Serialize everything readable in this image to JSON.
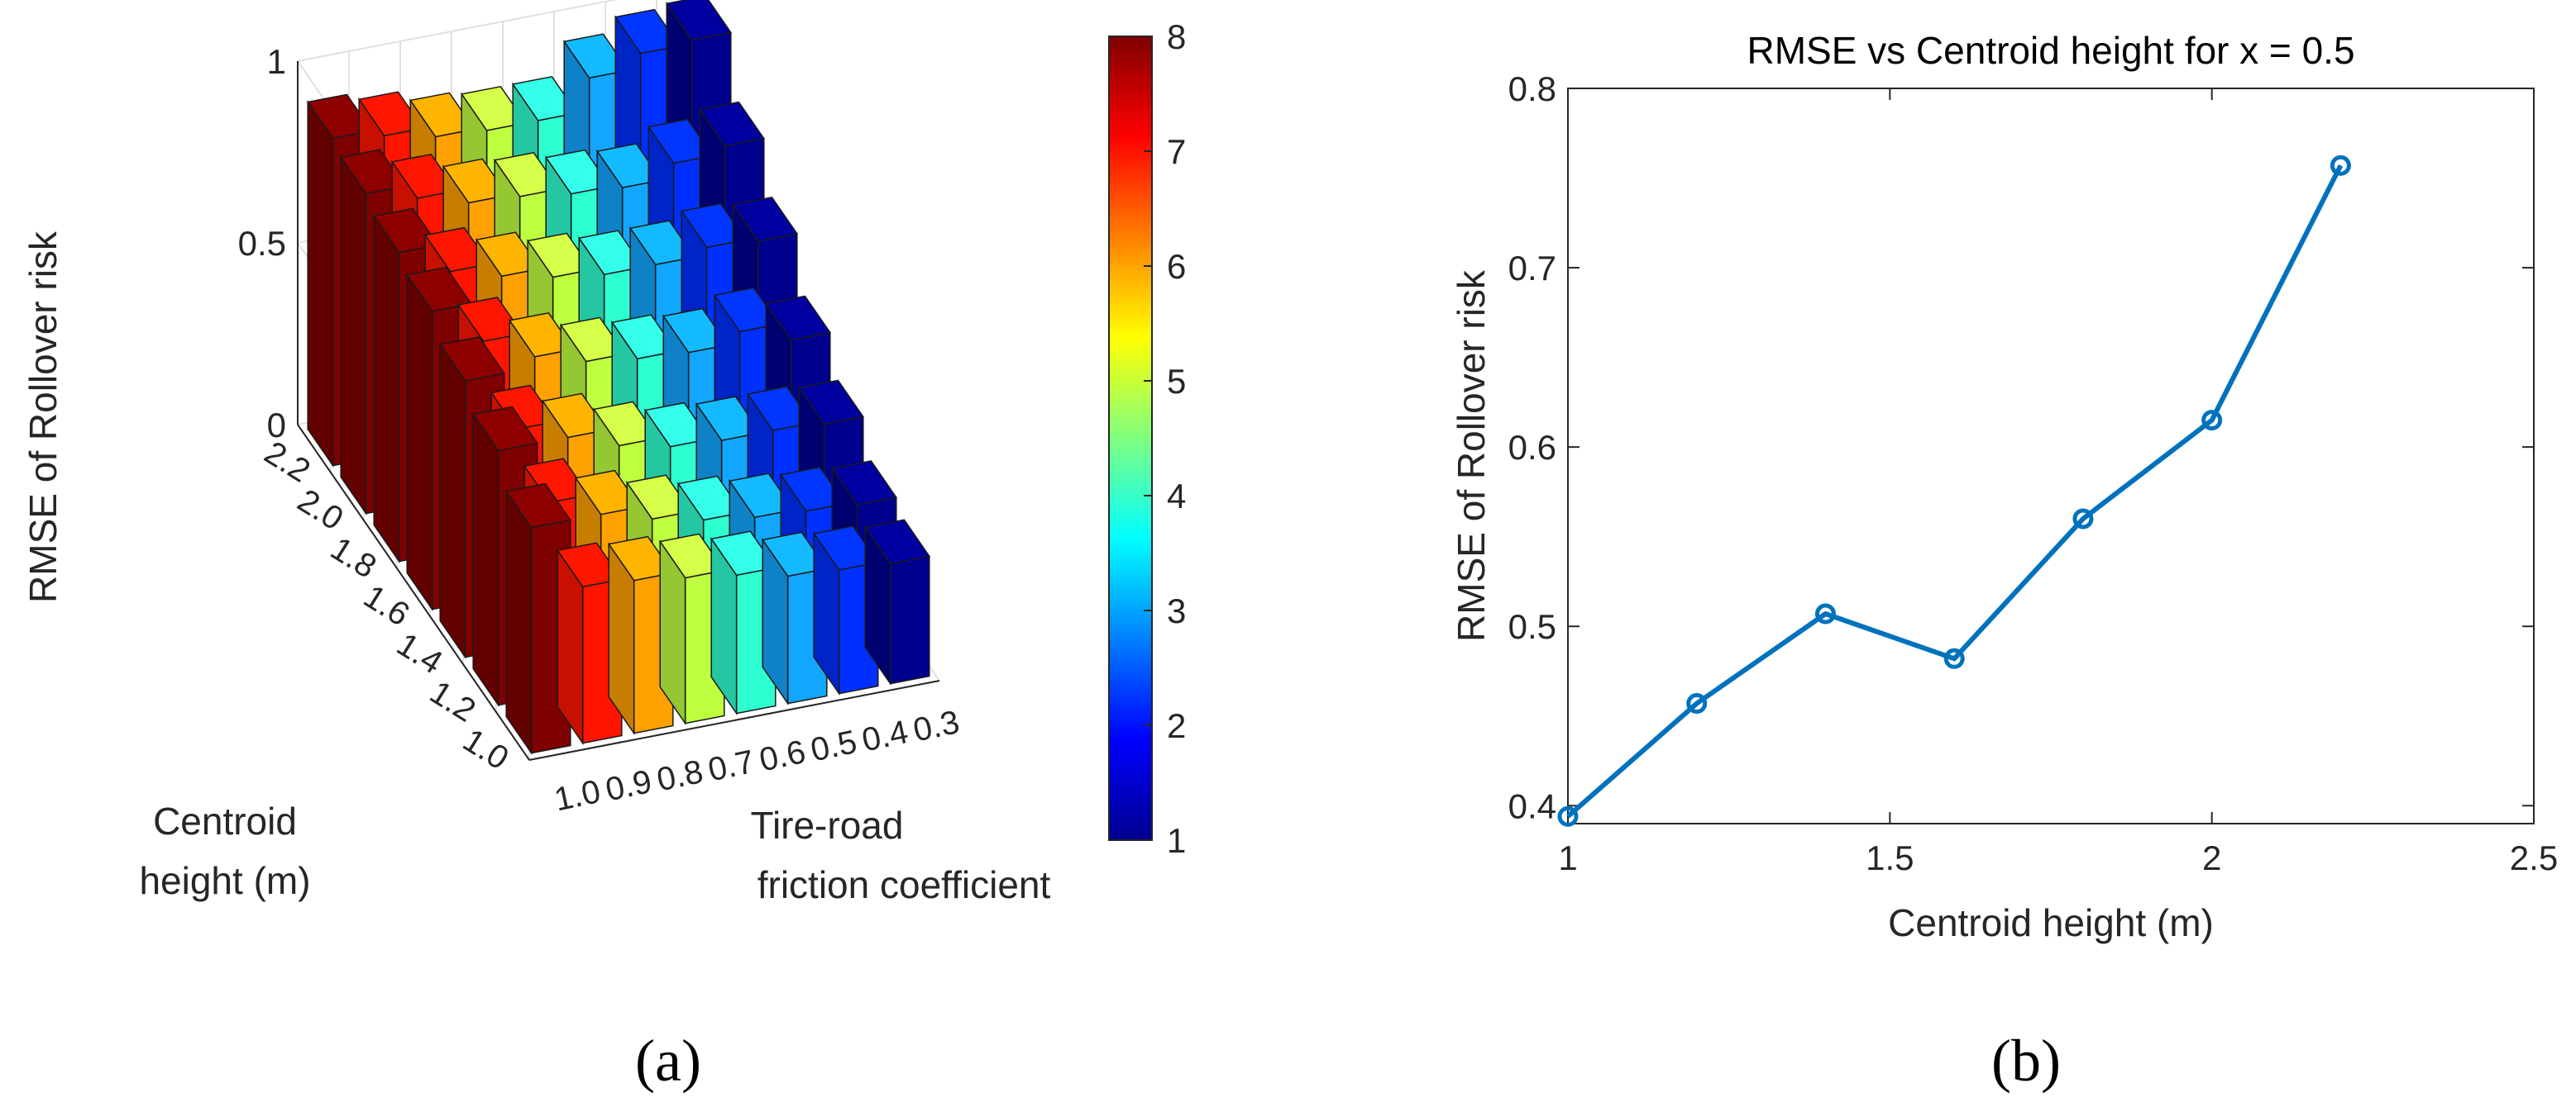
{
  "panel_labels": {
    "a": "(a)",
    "b": "(b)"
  },
  "chart_data": [
    {
      "panel": "a",
      "type": "bar3d",
      "ylabel": "RMSE of Rollover risk",
      "xlabel_lines": [
        "Centroid",
        "height (m)"
      ],
      "flabel_lines": [
        "Tire-road",
        "friction coefficient"
      ],
      "centroid_height_ticks": [
        "2.2",
        "2.0",
        "1.8",
        "1.6",
        "1.4",
        "1.2",
        "1.0"
      ],
      "friction_ticks": [
        "1.0",
        "0.9",
        "0.8",
        "0.7",
        "0.6",
        "0.5",
        "0.4",
        "0.3"
      ],
      "centroid_height": [
        2.2,
        2.0,
        1.8,
        1.6,
        1.4,
        1.2,
        1.0
      ],
      "friction": [
        1.0,
        0.9,
        0.8,
        0.7,
        0.6,
        0.5,
        0.4,
        0.3
      ],
      "values": [
        [
          0.9,
          0.88,
          0.85,
          0.84,
          0.84,
          0.93,
          0.97,
          0.98
        ],
        [
          0.88,
          0.84,
          0.8,
          0.79,
          0.77,
          0.76,
          0.8,
          0.82
        ],
        [
          0.85,
          0.77,
          0.73,
          0.7,
          0.68,
          0.68,
          0.7,
          0.69
        ],
        [
          0.82,
          0.71,
          0.64,
          0.6,
          0.58,
          0.57,
          0.6,
          0.55
        ],
        [
          0.76,
          0.6,
          0.55,
          0.5,
          0.47,
          0.46,
          0.46,
          0.45
        ],
        [
          0.7,
          0.53,
          0.47,
          0.43,
          0.4,
          0.38,
          0.37,
          0.36
        ],
        [
          0.62,
          0.43,
          0.42,
          0.4,
          0.38,
          0.35,
          0.34,
          0.33
        ]
      ],
      "zlim": [
        0,
        1
      ],
      "zticks": [
        "0",
        "0.5",
        "1"
      ],
      "colorbar": {
        "min": 1,
        "max": 8,
        "ticks": [
          "1",
          "2",
          "3",
          "4",
          "5",
          "6",
          "7",
          "8"
        ],
        "colormap": "jet"
      },
      "column_colors": [
        "#7f0000",
        "#ff1400",
        "#ffa100",
        "#beff40",
        "#2effd0",
        "#12a6ff",
        "#0030ff",
        "#00008f"
      ]
    },
    {
      "panel": "b",
      "type": "line",
      "title": "RMSE vs Centroid height for x = 0.5",
      "xlabel": "Centroid height (m)",
      "ylabel": "RMSE of Rollover risk",
      "x": [
        1.0,
        1.2,
        1.4,
        1.6,
        1.8,
        2.0,
        2.2
      ],
      "y": [
        0.394,
        0.457,
        0.507,
        0.482,
        0.56,
        0.615,
        0.757
      ],
      "xlim": [
        1,
        2.5
      ],
      "ylim": [
        0.39,
        0.8
      ],
      "xticks": [
        1,
        1.5,
        2,
        2.5
      ],
      "xtick_labels": [
        "1",
        "1.5",
        "2",
        "2.5"
      ],
      "yticks": [
        0.4,
        0.5,
        0.6,
        0.7,
        0.8
      ],
      "ytick_labels": [
        "0.4",
        "0.5",
        "0.6",
        "0.7",
        "0.8"
      ],
      "line_color": "#0072bd",
      "marker": "circle"
    }
  ]
}
